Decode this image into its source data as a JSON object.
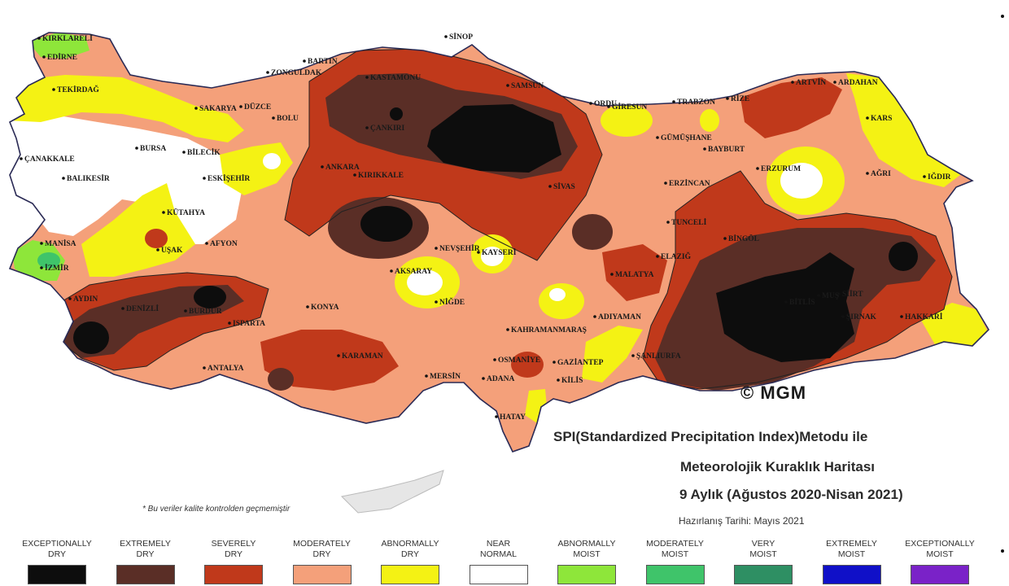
{
  "title": {
    "line1": "SPI(Standardized Precipitation Index)Metodu ile",
    "line2": "Meteorolojik Kuraklık Haritası",
    "line3": "9 Aylık (Ağustos 2020-Nisan 2021)",
    "prepared": "Hazırlanış Tarihi: Mayıs 2021"
  },
  "note": "* Bu veriler kalite kontrolden geçmemiştir",
  "copyright": "© MGM",
  "colors": {
    "exceptionally_dry": "#0d0d0d",
    "extremely_dry": "#5a2e26",
    "severely_dry": "#c0391b",
    "moderately_dry": "#f4a07a",
    "abnormally_dry": "#f4f214",
    "near_normal": "#ffffff",
    "abnormally_moist": "#8ee63a",
    "moderately_moist": "#3fc46a",
    "very_moist": "#2e8f63",
    "extremely_moist": "#1010c8",
    "exceptionally_moist": "#7a22c8"
  },
  "legend": [
    {
      "line1": "EXCEPTIONALLY",
      "line2": "DRY",
      "color": "#0d0d0d"
    },
    {
      "line1": "EXTREMELY",
      "line2": "DRY",
      "color": "#5a2e26"
    },
    {
      "line1": "SEVERELY",
      "line2": "DRY",
      "color": "#c0391b"
    },
    {
      "line1": "MODERATELY",
      "line2": "DRY",
      "color": "#f4a07a"
    },
    {
      "line1": "ABNORMALLY",
      "line2": "DRY",
      "color": "#f4f214"
    },
    {
      "line1": "NEAR",
      "line2": "NORMAL",
      "color": "#ffffff"
    },
    {
      "line1": "ABNORMALLY",
      "line2": "MOIST",
      "color": "#8ee63a"
    },
    {
      "line1": "MODERATELY",
      "line2": "MOIST",
      "color": "#3fc46a"
    },
    {
      "line1": "VERY",
      "line2": "MOIST",
      "color": "#2e8f63"
    },
    {
      "line1": "EXTREMELY",
      "line2": "MOIST",
      "color": "#1010c8"
    },
    {
      "line1": "EXCEPTIONALLY",
      "line2": "MOIST",
      "color": "#7a22c8"
    }
  ],
  "cities": [
    {
      "name": "KIRKLARELİ"
    },
    {
      "name": "EDİRNE"
    },
    {
      "name": "TEKİRDAĞ"
    },
    {
      "name": "SİNOP"
    },
    {
      "name": "BARTIN"
    },
    {
      "name": "ZONGULDAK"
    },
    {
      "name": "KASTAMONU"
    },
    {
      "name": "SAMSUN"
    },
    {
      "name": "ARTVİN"
    },
    {
      "name": "ARDAHAN"
    },
    {
      "name": "TRABZON"
    },
    {
      "name": "RİZE"
    },
    {
      "name": "GİRESUN"
    },
    {
      "name": "ORDU"
    },
    {
      "name": "ÇANKIRI"
    },
    {
      "name": "BOLU"
    },
    {
      "name": "DÜZCE"
    },
    {
      "name": "SAKARYA"
    },
    {
      "name": "BURSA"
    },
    {
      "name": "BİLECİK"
    },
    {
      "name": "ÇANAKKALE"
    },
    {
      "name": "BALIKESİR"
    },
    {
      "name": "ESKİŞEHİR"
    },
    {
      "name": "ANKARA"
    },
    {
      "name": "KIRIKKALE"
    },
    {
      "name": "GÜMÜŞHANE"
    },
    {
      "name": "BAYBURT"
    },
    {
      "name": "KARS"
    },
    {
      "name": "ERZURUM"
    },
    {
      "name": "AĞRI"
    },
    {
      "name": "IĞDIR"
    },
    {
      "name": "ERZİNCAN"
    },
    {
      "name": "SİVAS"
    },
    {
      "name": "KÜTAHYA"
    },
    {
      "name": "MANİSA"
    },
    {
      "name": "İZMİR"
    },
    {
      "name": "UŞAK"
    },
    {
      "name": "AFYON"
    },
    {
      "name": "NEVŞEHİR"
    },
    {
      "name": "KAYSERİ"
    },
    {
      "name": "AKSARAY"
    },
    {
      "name": "TUNCELİ"
    },
    {
      "name": "BİNGÖL"
    },
    {
      "name": "ELAZIĞ"
    },
    {
      "name": "MALATYA"
    },
    {
      "name": "AYDIN"
    },
    {
      "name": "DENİZLİ"
    },
    {
      "name": "BURDUR"
    },
    {
      "name": "ISPARTA"
    },
    {
      "name": "KONYA"
    },
    {
      "name": "NİĞDE"
    },
    {
      "name": "SİİRT"
    },
    {
      "name": "BİTLİS"
    },
    {
      "name": "ŞIRNAK"
    },
    {
      "name": "HAKKARİ"
    },
    {
      "name": "ADIYAMAN"
    },
    {
      "name": "KAHRAMANMARAŞ"
    },
    {
      "name": "ANTALYA"
    },
    {
      "name": "KARAMAN"
    },
    {
      "name": "OSMANİYE"
    },
    {
      "name": "GAZİANTEP"
    },
    {
      "name": "ŞANLIURFA"
    },
    {
      "name": "KİLİS"
    },
    {
      "name": "MERSİN"
    },
    {
      "name": "ADANA"
    },
    {
      "name": "HATAY"
    },
    {
      "name": "MUŞ"
    }
  ]
}
